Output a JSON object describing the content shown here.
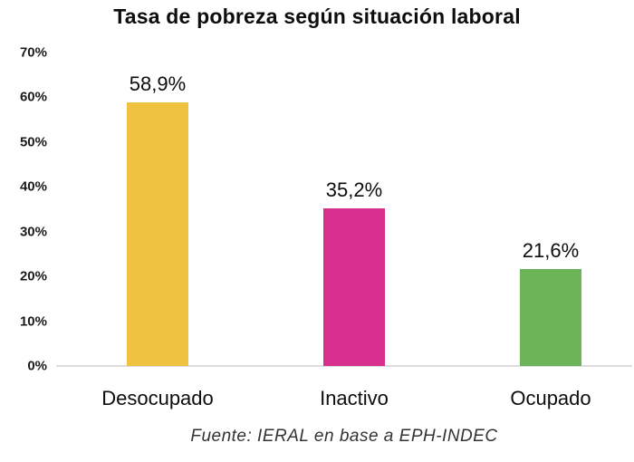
{
  "chart_data": {
    "type": "bar",
    "title": "Tasa de pobreza según situación laboral",
    "categories": [
      "Desocupado",
      "Inactivo",
      "Ocupado"
    ],
    "values": [
      58.9,
      35.2,
      21.6
    ],
    "value_labels": [
      "58,9%",
      "35,2%",
      "21,6%"
    ],
    "bar_colors": [
      "#F0C242",
      "#D72F8D",
      "#6BB457"
    ],
    "xlabel": "",
    "ylabel": "",
    "ylim": [
      0,
      70
    ],
    "ytick_step": 10,
    "ytick_labels": [
      "0%",
      "10%",
      "20%",
      "30%",
      "40%",
      "50%",
      "60%",
      "70%"
    ],
    "grid": false,
    "legend": false,
    "source": "Fuente: IERAL en base a EPH-INDEC"
  },
  "colors": {
    "background": "#ffffff",
    "title_text": "#0d0d0d",
    "tick_text": "#1a1a1a",
    "axis_line": "#dcdcdc",
    "source_text": "#333333"
  }
}
